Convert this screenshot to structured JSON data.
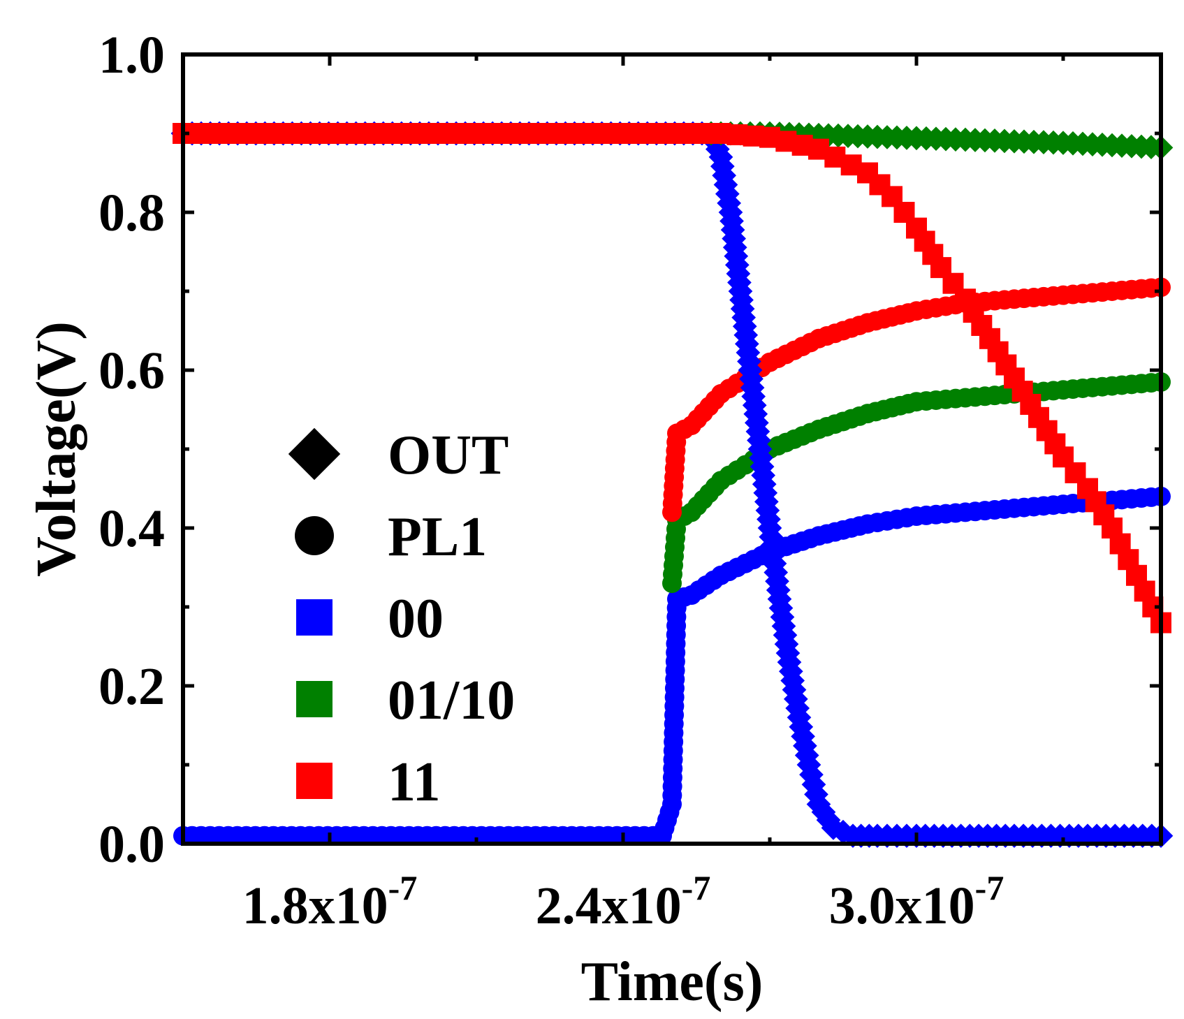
{
  "chart_data": {
    "type": "scatter",
    "title": "",
    "xlabel": "Time(s)",
    "ylabel": "Voltage(V)",
    "xlim": [
      1.5e-07,
      3.5e-07
    ],
    "ylim": [
      0,
      1.0
    ],
    "grid": false,
    "x_ticks": [
      {
        "value": 1.8e-07,
        "mantissa": "1.8x10",
        "exponent": "-7"
      },
      {
        "value": 2.4e-07,
        "mantissa": "2.4x10",
        "exponent": "-7"
      },
      {
        "value": 3e-07,
        "mantissa": "3.0x10",
        "exponent": "-7"
      }
    ],
    "y_ticks": [
      {
        "value": 0.0,
        "label": "0.0"
      },
      {
        "value": 0.2,
        "label": "0.2"
      },
      {
        "value": 0.4,
        "label": "0.4"
      },
      {
        "value": 0.6,
        "label": "0.6"
      },
      {
        "value": 0.8,
        "label": "0.8"
      },
      {
        "value": 1.0,
        "label": "1.0"
      }
    ],
    "legend_position": "center-left",
    "legend": [
      {
        "label": "OUT",
        "marker": "diamond",
        "color": "#000000"
      },
      {
        "label": "PL1",
        "marker": "circle",
        "color": "#000000"
      },
      {
        "label": "00",
        "marker": "square",
        "color": "#0000ff"
      },
      {
        "label": "01/10",
        "marker": "square",
        "color": "#008000"
      },
      {
        "label": "11",
        "marker": "square",
        "color": "#ff0000"
      }
    ],
    "series": [
      {
        "name": "PL1 (00)",
        "marker": "circle",
        "color": "#0000ff",
        "x": [
          1.5e-07,
          2.48e-07,
          2.5e-07,
          2.51e-07,
          2.54e-07,
          2.6e-07,
          2.7e-07,
          2.8e-07,
          2.9e-07,
          3e-07,
          3.1e-07,
          3.2e-07,
          3.3e-07,
          3.4e-07,
          3.5e-07
        ],
        "y": [
          0.01,
          0.01,
          0.05,
          0.31,
          0.315,
          0.34,
          0.37,
          0.39,
          0.405,
          0.415,
          0.42,
          0.425,
          0.43,
          0.435,
          0.44
        ]
      },
      {
        "name": "PL1 (01/10)",
        "marker": "circle",
        "color": "#008000",
        "x": [
          2.5e-07,
          2.51e-07,
          2.54e-07,
          2.6e-07,
          2.7e-07,
          2.8e-07,
          2.9e-07,
          3e-07,
          3.1e-07,
          3.2e-07,
          3.3e-07,
          3.4e-07,
          3.5e-07
        ],
        "y": [
          0.33,
          0.41,
          0.42,
          0.46,
          0.5,
          0.525,
          0.545,
          0.56,
          0.565,
          0.57,
          0.575,
          0.58,
          0.585
        ]
      },
      {
        "name": "PL1 (11)",
        "marker": "circle",
        "color": "#ff0000",
        "x": [
          2.5e-07,
          2.51e-07,
          2.54e-07,
          2.6e-07,
          2.7e-07,
          2.8e-07,
          2.9e-07,
          3e-07,
          3.1e-07,
          3.2e-07,
          3.3e-07,
          3.4e-07,
          3.5e-07
        ],
        "y": [
          0.42,
          0.52,
          0.53,
          0.57,
          0.61,
          0.64,
          0.66,
          0.675,
          0.685,
          0.69,
          0.695,
          0.7,
          0.705
        ]
      },
      {
        "name": "OUT (00)",
        "marker": "diamond",
        "color": "#0000ff",
        "x": [
          1.5e-07,
          2.58e-07,
          2.6e-07,
          2.62e-07,
          2.64e-07,
          2.66e-07,
          2.68e-07,
          2.7e-07,
          2.72e-07,
          2.74e-07,
          2.76e-07,
          2.78e-07,
          2.8e-07,
          2.83e-07,
          2.87e-07,
          2.92e-07,
          3e-07,
          3.2e-07,
          3.5e-07
        ],
        "y": [
          0.9,
          0.9,
          0.87,
          0.8,
          0.7,
          0.6,
          0.5,
          0.4,
          0.31,
          0.23,
          0.16,
          0.1,
          0.05,
          0.02,
          0.01,
          0.01,
          0.01,
          0.01,
          0.01
        ]
      },
      {
        "name": "OUT (01/10)",
        "marker": "diamond",
        "color": "#008000",
        "x": [
          2.58e-07,
          2.7e-07,
          2.8e-07,
          2.9e-07,
          3e-07,
          3.1e-07,
          3.2e-07,
          3.3e-07,
          3.4e-07,
          3.5e-07
        ],
        "y": [
          0.9,
          0.9,
          0.898,
          0.896,
          0.894,
          0.892,
          0.89,
          0.888,
          0.885,
          0.882
        ]
      },
      {
        "name": "OUT (11)",
        "marker": "square",
        "color": "#ff0000",
        "x": [
          1.5e-07,
          2.48e-07,
          2.6e-07,
          2.7e-07,
          2.8e-07,
          2.9e-07,
          2.95e-07,
          3e-07,
          3.05e-07,
          3.1e-07,
          3.15e-07,
          3.2e-07,
          3.25e-07,
          3.3e-07,
          3.35e-07,
          3.4e-07,
          3.45e-07,
          3.5e-07
        ],
        "y": [
          0.9,
          0.9,
          0.9,
          0.895,
          0.88,
          0.85,
          0.82,
          0.78,
          0.73,
          0.69,
          0.64,
          0.59,
          0.54,
          0.49,
          0.45,
          0.4,
          0.34,
          0.28
        ]
      }
    ]
  }
}
